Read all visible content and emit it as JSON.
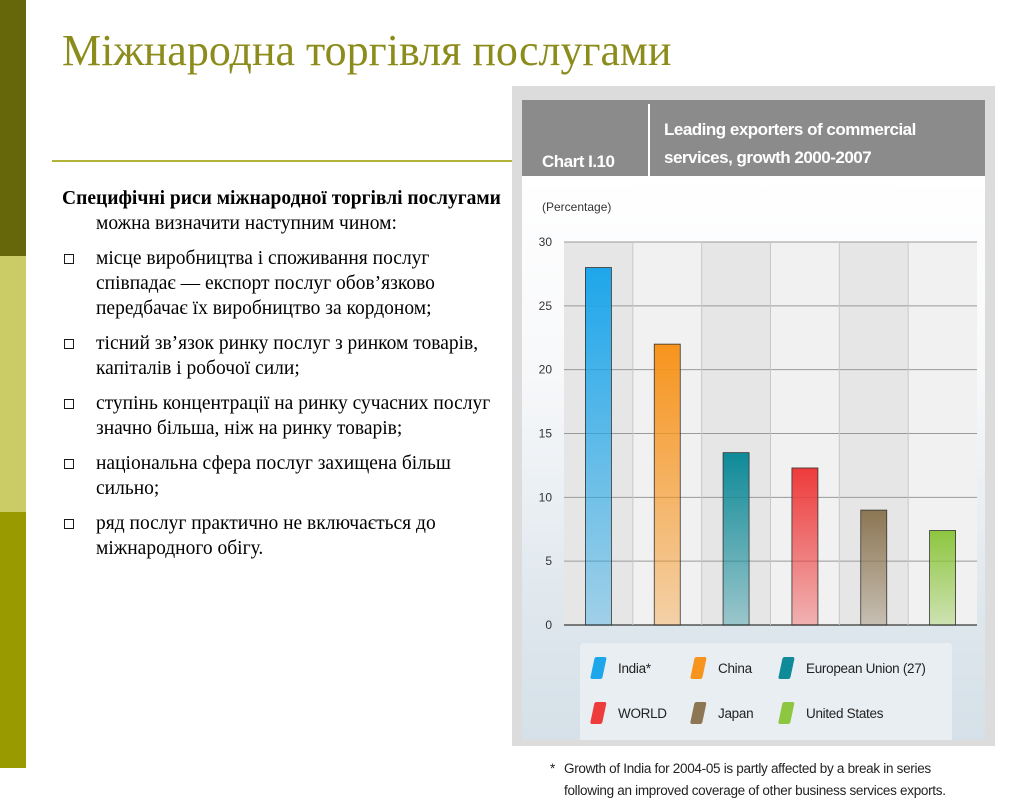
{
  "slide": {
    "title": "Міжнародна торгівля послугами",
    "intro_bold": "Специфічні риси міжнародної торгівлі послугами",
    "intro_rest": " можна визначити наступним чином:",
    "bullets": [
      "місце виробництва і споживання послуг співпадає — експорт послуг обов’язково передбачає їх виробництво за кордоном;",
      "тісний зв’язок ринку послуг з ринком товарів, капіталів і робочої сили;",
      "ступінь концентрації на ринку сучасних послуг значно більша, ніж на ринку товарів;",
      "національна сфера послуг захищена більш сильно;",
      "ряд послуг практично не включається до міжнародного обігу."
    ],
    "colors": {
      "stripe_dark": "#66660a",
      "stripe_light": "#cccc66",
      "stripe_mid": "#999900",
      "title": "#8c8c1c"
    }
  },
  "chart_data": {
    "type": "bar",
    "chart_number": "Chart I.10",
    "title": "Leading exporters of commercial services, growth 2000-2007",
    "ylabel": "(Percentage)",
    "ylim": [
      0,
      30
    ],
    "yticks": [
      0,
      5,
      10,
      15,
      20,
      25,
      30
    ],
    "grid": true,
    "legend_position": "bottom",
    "categories": [
      "India*",
      "China",
      "European Union (27)",
      "WORLD",
      "Japan",
      "United States"
    ],
    "values": [
      28,
      22,
      13.5,
      12.3,
      9,
      7.4
    ],
    "colors": [
      "#1ea6ea",
      "#f7941d",
      "#0e8a98",
      "#ee3b3b",
      "#8c7653",
      "#8dc63f"
    ],
    "footnote_marker": "*",
    "footnote": "Growth of India for 2004-05 is partly affected by a break in series following an improved coverage of other business services exports."
  }
}
